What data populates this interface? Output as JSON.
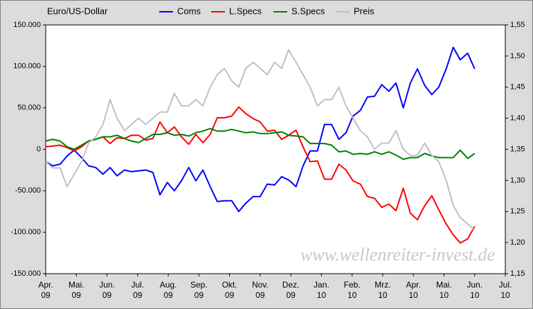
{
  "chart_data": {
    "type": "line",
    "title": "Euro/US-Dollar",
    "watermark": "www.wellenreiter-invest.de",
    "x": [
      0,
      0.23,
      0.47,
      0.7,
      0.93,
      1.17,
      1.4,
      1.63,
      1.87,
      2.1,
      2.33,
      2.57,
      2.8,
      3.03,
      3.27,
      3.5,
      3.73,
      3.97,
      4.2,
      4.43,
      4.67,
      4.9,
      5.13,
      5.37,
      5.6,
      5.83,
      6.07,
      6.3,
      6.53,
      6.77,
      7,
      7.23,
      7.47,
      7.7,
      7.93,
      8.17,
      8.4,
      8.63,
      8.87,
      9.1,
      9.33,
      9.57,
      9.8,
      10.03,
      10.27,
      10.5,
      10.73,
      10.97,
      11.2,
      11.43,
      11.67,
      11.9,
      12.13,
      12.37,
      12.6,
      12.83,
      13.07,
      13.3,
      13.53,
      13.77,
      14
    ],
    "xlim": [
      0,
      15
    ],
    "xticks": [
      {
        "value": 0,
        "label": "Apr. 09"
      },
      {
        "value": 1,
        "label": "Mai. 09"
      },
      {
        "value": 2,
        "label": "Jun. 09"
      },
      {
        "value": 3,
        "label": "Jul. 09"
      },
      {
        "value": 4,
        "label": "Aug. 09"
      },
      {
        "value": 5,
        "label": "Sep. 09"
      },
      {
        "value": 6,
        "label": "Okt. 09"
      },
      {
        "value": 7,
        "label": "Nov. 09"
      },
      {
        "value": 8,
        "label": "Dez. 09"
      },
      {
        "value": 9,
        "label": "Jan. 10"
      },
      {
        "value": 10,
        "label": "Feb. 10"
      },
      {
        "value": 11,
        "label": "Mrz. 10"
      },
      {
        "value": 12,
        "label": "Apr. 10"
      },
      {
        "value": 13,
        "label": "Mai. 10"
      },
      {
        "value": 14,
        "label": "Jun. 10"
      },
      {
        "value": 15,
        "label": "Jul. 10"
      }
    ],
    "ylim": [
      -150000,
      150000
    ],
    "yticks": [
      {
        "value": -150000,
        "label": "-150.000"
      },
      {
        "value": -100000,
        "label": "-100.000"
      },
      {
        "value": -50000,
        "label": "-50.000"
      },
      0,
      {
        "value": 50000,
        "label": "50.000"
      },
      {
        "value": 100000,
        "label": "100.000"
      },
      {
        "value": 150000,
        "label": "150.000"
      }
    ],
    "y2lim": [
      1.15,
      1.55
    ],
    "y2ticks": [
      {
        "value": 1.15,
        "label": "1,15"
      },
      {
        "value": 1.2,
        "label": "1,20"
      },
      {
        "value": 1.25,
        "label": "1,25"
      },
      {
        "value": 1.3,
        "label": "1,30"
      },
      {
        "value": 1.35,
        "label": "1,35"
      },
      {
        "value": 1.4,
        "label": "1,40"
      },
      {
        "value": 1.45,
        "label": "1,45"
      },
      {
        "value": 1.5,
        "label": "1,50"
      },
      {
        "value": 1.55,
        "label": "1,55"
      }
    ],
    "series": [
      {
        "name": "Coms",
        "color": "#0000ff",
        "values": [
          -15000,
          -20000,
          -18000,
          -8000,
          -1000,
          -10000,
          -20000,
          -22000,
          -30000,
          -22000,
          -32000,
          -25000,
          -27000,
          -26000,
          -25000,
          -28000,
          -55000,
          -40000,
          -50000,
          -38000,
          -22000,
          -38000,
          -25000,
          -45000,
          -63000,
          -62000,
          -62000,
          -75000,
          -65000,
          -57000,
          -57000,
          -42000,
          -43000,
          -33000,
          -37000,
          -45000,
          -20000,
          -2000,
          -2000,
          30000,
          30000,
          12000,
          20000,
          40000,
          47000,
          63000,
          64000,
          78000,
          70000,
          80000,
          50000,
          80000,
          97000,
          77000,
          66000,
          75000,
          97000,
          123000,
          108000,
          116000,
          97000
        ]
      },
      {
        "name": "L.Specs",
        "color": "#ff0000",
        "values": [
          3000,
          4000,
          5000,
          2000,
          -2000,
          3000,
          10000,
          12000,
          15000,
          7000,
          14000,
          13000,
          17000,
          17000,
          11000,
          13000,
          33000,
          20000,
          27000,
          15000,
          6000,
          18000,
          8000,
          18000,
          38000,
          38000,
          40000,
          51000,
          43000,
          37000,
          33000,
          22000,
          23000,
          12000,
          17000,
          23000,
          3000,
          -15000,
          -14000,
          -36000,
          -36000,
          -18000,
          -25000,
          -38000,
          -42000,
          -57000,
          -59000,
          -70000,
          -66000,
          -74000,
          -47000,
          -77000,
          -85000,
          -68000,
          -56000,
          -73000,
          -90000,
          -103000,
          -113000,
          -108000,
          -93000
        ]
      },
      {
        "name": "S.Specs",
        "color": "#008000",
        "values": [
          10000,
          12000,
          10000,
          3000,
          0,
          5000,
          10000,
          12000,
          15000,
          15000,
          17000,
          13000,
          10000,
          8000,
          13000,
          18000,
          18000,
          20000,
          17000,
          18000,
          16000,
          20000,
          22000,
          25000,
          22000,
          22000,
          24000,
          22000,
          20000,
          21000,
          19000,
          19000,
          20000,
          21000,
          17000,
          16000,
          15000,
          7000,
          7000,
          7000,
          5000,
          -3000,
          -2000,
          -6000,
          -5000,
          -6000,
          -3000,
          -6000,
          -3000,
          -7000,
          -12000,
          -10000,
          -10000,
          -5000,
          -8000,
          -10000,
          -10000,
          -10000,
          -1000,
          -11000,
          -5000
        ]
      },
      {
        "name": "Preis",
        "color": "#c0c0c0",
        "axis": "y2",
        "values": [
          1.33,
          1.32,
          1.32,
          1.29,
          1.31,
          1.33,
          1.36,
          1.37,
          1.39,
          1.43,
          1.4,
          1.38,
          1.39,
          1.4,
          1.39,
          1.4,
          1.41,
          1.41,
          1.44,
          1.42,
          1.42,
          1.43,
          1.42,
          1.45,
          1.47,
          1.48,
          1.46,
          1.45,
          1.48,
          1.49,
          1.48,
          1.47,
          1.49,
          1.48,
          1.51,
          1.49,
          1.47,
          1.45,
          1.42,
          1.43,
          1.43,
          1.45,
          1.42,
          1.4,
          1.38,
          1.37,
          1.35,
          1.36,
          1.36,
          1.38,
          1.35,
          1.34,
          1.34,
          1.36,
          1.34,
          1.33,
          1.3,
          1.26,
          1.24,
          1.23,
          1.22
        ]
      }
    ]
  }
}
